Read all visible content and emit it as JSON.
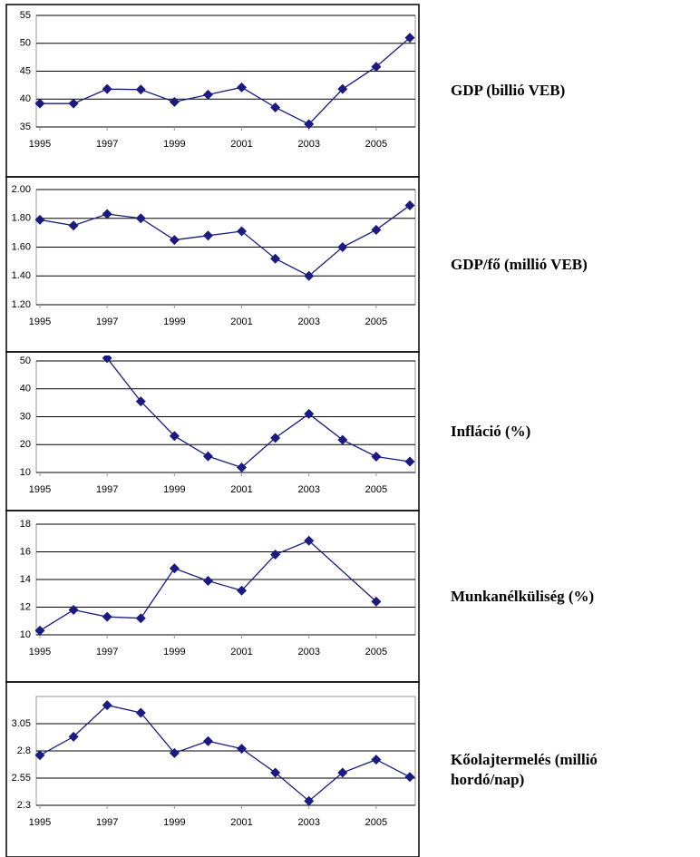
{
  "chart_data": [
    {
      "type": "line",
      "title": "GDP (billió VEB)",
      "color": "#1a1a80",
      "x": [
        1995,
        1996,
        1997,
        1998,
        1999,
        2000,
        2001,
        2002,
        2003,
        2004,
        2005,
        2006
      ],
      "values": [
        39.2,
        39.2,
        41.8,
        41.7,
        39.5,
        40.8,
        42.1,
        38.5,
        35.5,
        41.8,
        45.8,
        51.0
      ],
      "xlim": [
        1995,
        2006
      ],
      "xticks": [
        1995,
        1997,
        1999,
        2001,
        2003,
        2005
      ],
      "ylim": [
        35,
        55
      ],
      "yticks": [
        35,
        40,
        45,
        50,
        55
      ],
      "grid": true
    },
    {
      "type": "line",
      "title": "GDP/fő (millió VEB)",
      "color": "#1a1a80",
      "x": [
        1995,
        1996,
        1997,
        1998,
        1999,
        2000,
        2001,
        2002,
        2003,
        2004,
        2005,
        2006
      ],
      "values": [
        1.79,
        1.75,
        1.83,
        1.8,
        1.65,
        1.68,
        1.71,
        1.52,
        1.4,
        1.6,
        1.72,
        1.89
      ],
      "xlim": [
        1995,
        2006
      ],
      "xticks": [
        1995,
        1997,
        1999,
        2001,
        2003,
        2005
      ],
      "ylim": [
        1.2,
        2.0
      ],
      "yticks": [
        {
          "value": 1.2,
          "label": "1.20"
        },
        {
          "value": 1.4,
          "label": "1.40"
        },
        {
          "value": 1.6,
          "label": "1.60"
        },
        {
          "value": 1.8,
          "label": "1.80"
        },
        {
          "value": 2.0,
          "label": "2.00"
        }
      ],
      "grid": true
    },
    {
      "type": "line",
      "title": "Infláció (%)",
      "color": "#1a1a80",
      "x": [
        1995,
        1996,
        1997,
        1998,
        1999,
        2000,
        2001,
        2002,
        2003,
        2004,
        2005,
        2006
      ],
      "values": [
        null,
        null,
        51,
        35.5,
        23.1,
        15.8,
        11.8,
        22.4,
        31.0,
        21.7,
        15.7,
        13.9
      ],
      "xlim": [
        1995,
        2006
      ],
      "xticks": [
        1995,
        1997,
        1999,
        2001,
        2003,
        2005
      ],
      "ylim": [
        10,
        50
      ],
      "yticks": [
        10,
        20,
        30,
        40,
        50
      ],
      "grid": true
    },
    {
      "type": "line",
      "title": "Munkanélküliség (%)",
      "color": "#1a1a80",
      "x": [
        1995,
        1996,
        1997,
        1998,
        1999,
        2000,
        2001,
        2002,
        2003,
        2005
      ],
      "values": [
        10.3,
        11.8,
        11.3,
        11.2,
        14.8,
        13.9,
        13.2,
        15.8,
        16.8,
        12.4
      ],
      "xlim": [
        1995,
        2006
      ],
      "xticks": [
        1995,
        1997,
        1999,
        2001,
        2003,
        2005
      ],
      "ylim": [
        10,
        18
      ],
      "yticks": [
        10,
        12,
        14,
        16,
        18
      ],
      "grid": true
    },
    {
      "type": "line",
      "title": "Kőolajtermelés (millió hordó/nap)",
      "color": "#1a1a80",
      "x": [
        1995,
        1996,
        1997,
        1998,
        1999,
        2000,
        2001,
        2002,
        2003,
        2004,
        2005,
        2006
      ],
      "values": [
        2.76,
        2.93,
        3.22,
        3.15,
        2.78,
        2.89,
        2.82,
        2.6,
        2.34,
        2.6,
        2.72,
        2.56
      ],
      "xlim": [
        1995,
        2006
      ],
      "xticks": [
        1995,
        1997,
        1999,
        2001,
        2003,
        2005
      ],
      "ylim": [
        2.3,
        3.3
      ],
      "yticks": [
        2.3,
        2.55,
        2.8,
        3.05
      ],
      "grid": true
    }
  ]
}
